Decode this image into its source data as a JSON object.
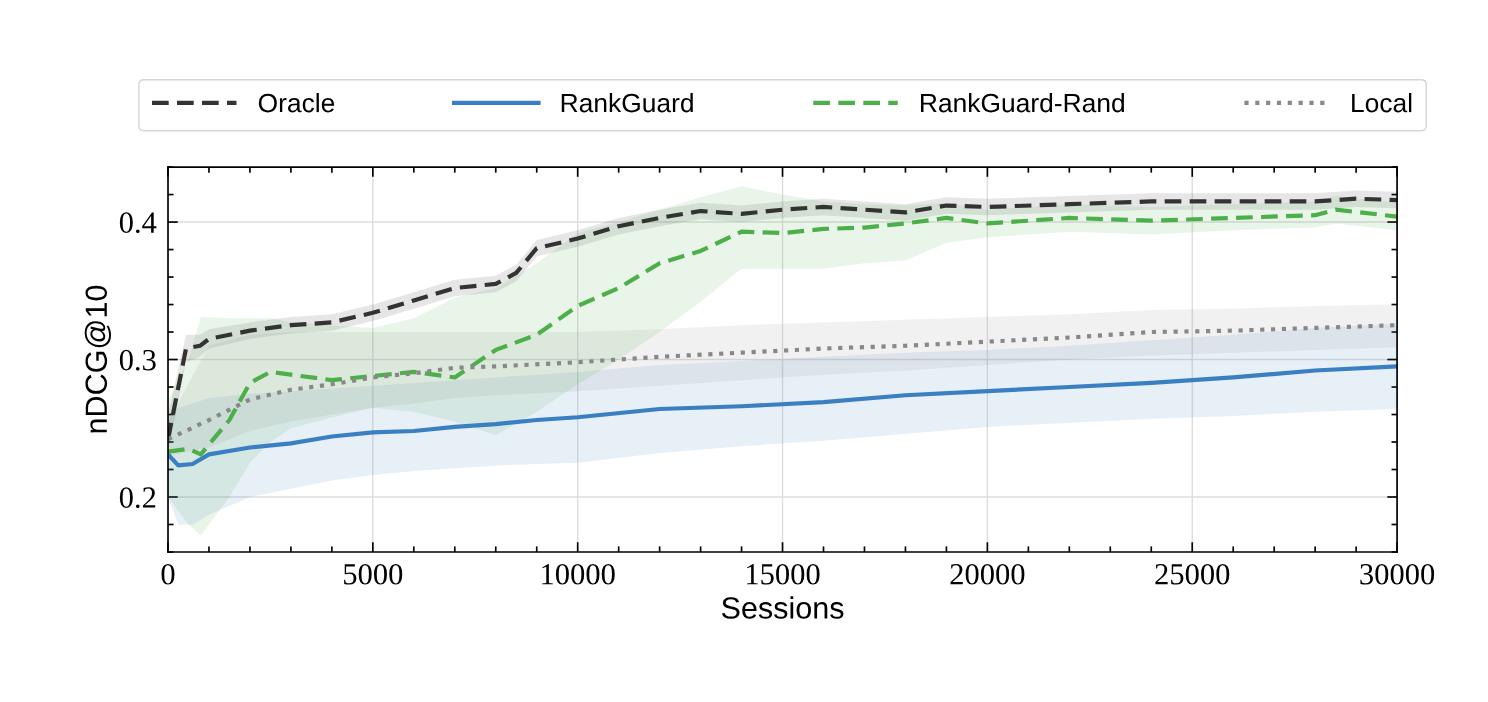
{
  "chart_data": {
    "type": "line",
    "xlabel": "Sessions",
    "ylabel": "nDCG@10",
    "xlim": [
      0,
      30000
    ],
    "ylim": [
      0.16,
      0.44
    ],
    "xticks": [
      0,
      {
        "value": 1000,
        "label": null
      },
      {
        "value": 2000,
        "label": null
      },
      {
        "value": 3000,
        "label": null
      },
      {
        "value": 4000,
        "label": null
      },
      5000,
      {
        "value": 6000,
        "label": null
      },
      {
        "value": 7000,
        "label": null
      },
      {
        "value": 8000,
        "label": null
      },
      {
        "value": 9000,
        "label": null
      },
      10000,
      {
        "value": 11000,
        "label": null
      },
      {
        "value": 12000,
        "label": null
      },
      {
        "value": 13000,
        "label": null
      },
      {
        "value": 14000,
        "label": null
      },
      15000,
      {
        "value": 16000,
        "label": null
      },
      {
        "value": 17000,
        "label": null
      },
      {
        "value": 18000,
        "label": null
      },
      {
        "value": 19000,
        "label": null
      },
      20000,
      {
        "value": 21000,
        "label": null
      },
      {
        "value": 22000,
        "label": null
      },
      {
        "value": 23000,
        "label": null
      },
      {
        "value": 24000,
        "label": null
      },
      25000,
      {
        "value": 26000,
        "label": null
      },
      {
        "value": 27000,
        "label": null
      },
      {
        "value": 28000,
        "label": null
      },
      {
        "value": 29000,
        "label": null
      },
      30000
    ],
    "yticks": [
      {
        "value": 0.16,
        "label": null
      },
      {
        "value": 0.18,
        "label": null
      },
      0.2,
      {
        "value": 0.22,
        "label": null
      },
      {
        "value": 0.24,
        "label": null
      },
      {
        "value": 0.26,
        "label": null
      },
      {
        "value": 0.28,
        "label": null
      },
      0.3,
      {
        "value": 0.32,
        "label": null
      },
      {
        "value": 0.34,
        "label": null
      },
      {
        "value": 0.36,
        "label": null
      },
      {
        "value": 0.38,
        "label": null
      },
      0.4,
      {
        "value": 0.42,
        "label": null
      },
      {
        "value": 0.44,
        "label": null
      }
    ],
    "grid": true,
    "legend": "top",
    "marker": "none",
    "series": [
      {
        "name": "Oracle",
        "color": "#333333",
        "line_style": "dashed",
        "x": [
          0,
          440,
          780,
          1000,
          2000,
          3000,
          4000,
          5000,
          6000,
          7000,
          8000,
          8500,
          9000,
          10000,
          11000,
          12000,
          13000,
          14000,
          15000,
          16000,
          17000,
          18000,
          19000,
          20000,
          22000,
          24000,
          26000,
          28000,
          29000,
          30000
        ],
        "values": [
          0.242,
          0.308,
          0.31,
          0.315,
          0.321,
          0.325,
          0.327,
          0.334,
          0.343,
          0.352,
          0.355,
          0.363,
          0.381,
          0.388,
          0.397,
          0.403,
          0.408,
          0.406,
          0.409,
          0.411,
          0.409,
          0.407,
          0.412,
          0.411,
          0.413,
          0.415,
          0.415,
          0.415,
          0.417,
          0.416
        ],
        "lower": [
          0.232,
          0.298,
          0.302,
          0.308,
          0.315,
          0.319,
          0.321,
          0.328,
          0.337,
          0.346,
          0.349,
          0.357,
          0.375,
          0.382,
          0.391,
          0.397,
          0.402,
          0.4,
          0.403,
          0.405,
          0.403,
          0.401,
          0.406,
          0.405,
          0.407,
          0.409,
          0.409,
          0.409,
          0.411,
          0.41
        ],
        "upper": [
          0.26,
          0.318,
          0.318,
          0.322,
          0.327,
          0.331,
          0.333,
          0.34,
          0.349,
          0.358,
          0.361,
          0.369,
          0.387,
          0.394,
          0.403,
          0.409,
          0.414,
          0.412,
          0.415,
          0.417,
          0.415,
          0.413,
          0.418,
          0.417,
          0.419,
          0.421,
          0.421,
          0.421,
          0.423,
          0.422
        ]
      },
      {
        "name": "RankGuard",
        "color": "#3a7fc1",
        "line_style": "solid",
        "x": [
          0,
          250,
          600,
          1000,
          2000,
          3000,
          4000,
          5000,
          6000,
          7000,
          8000,
          9000,
          10000,
          12000,
          14000,
          16000,
          18000,
          20000,
          22000,
          24000,
          26000,
          28000,
          30000
        ],
        "values": [
          0.231,
          0.223,
          0.224,
          0.231,
          0.236,
          0.239,
          0.244,
          0.247,
          0.248,
          0.251,
          0.253,
          0.256,
          0.258,
          0.264,
          0.266,
          0.269,
          0.274,
          0.277,
          0.28,
          0.283,
          0.287,
          0.292,
          0.295
        ],
        "lower": [
          0.2,
          0.18,
          0.18,
          0.187,
          0.2,
          0.206,
          0.212,
          0.216,
          0.219,
          0.221,
          0.223,
          0.224,
          0.225,
          0.232,
          0.237,
          0.241,
          0.246,
          0.251,
          0.254,
          0.257,
          0.259,
          0.262,
          0.264
        ],
        "upper": [
          0.26,
          0.265,
          0.268,
          0.272,
          0.275,
          0.277,
          0.279,
          0.281,
          0.283,
          0.285,
          0.287,
          0.289,
          0.291,
          0.296,
          0.299,
          0.302,
          0.305,
          0.307,
          0.31,
          0.314,
          0.318,
          0.323,
          0.326
        ]
      },
      {
        "name": "RankGuard-Rand",
        "color": "#4daf4a",
        "line_style": "dashed",
        "x": [
          0,
          500,
          800,
          1500,
          2000,
          2500,
          3000,
          4000,
          5000,
          6000,
          7000,
          8000,
          9000,
          10000,
          11000,
          12000,
          13000,
          14000,
          15000,
          16000,
          17000,
          18000,
          19000,
          20000,
          22000,
          24000,
          26000,
          28000,
          28500,
          30000
        ],
        "values": [
          0.233,
          0.235,
          0.231,
          0.256,
          0.283,
          0.291,
          0.289,
          0.285,
          0.288,
          0.291,
          0.287,
          0.307,
          0.318,
          0.339,
          0.352,
          0.37,
          0.379,
          0.393,
          0.392,
          0.395,
          0.396,
          0.399,
          0.403,
          0.399,
          0.403,
          0.401,
          0.403,
          0.405,
          0.409,
          0.404
        ],
        "lower": [
          0.2,
          0.18,
          0.172,
          0.2,
          0.225,
          0.24,
          0.25,
          0.258,
          0.265,
          0.262,
          0.255,
          0.245,
          0.262,
          0.282,
          0.3,
          0.32,
          0.342,
          0.366,
          0.366,
          0.366,
          0.37,
          0.372,
          0.385,
          0.389,
          0.393,
          0.391,
          0.394,
          0.396,
          0.399,
          0.394
        ],
        "upper": [
          0.27,
          0.3,
          0.331,
          0.33,
          0.33,
          0.33,
          0.327,
          0.325,
          0.323,
          0.33,
          0.345,
          0.352,
          0.37,
          0.392,
          0.4,
          0.409,
          0.418,
          0.426,
          0.42,
          0.415,
          0.413,
          0.412,
          0.414,
          0.409,
          0.413,
          0.411,
          0.413,
          0.415,
          0.419,
          0.414
        ]
      },
      {
        "name": "Local",
        "color": "#888888",
        "line_style": "dotted",
        "x": [
          0,
          1000,
          2000,
          3000,
          4000,
          5000,
          6000,
          7000,
          8000,
          10000,
          12000,
          14000,
          16000,
          18000,
          20000,
          22000,
          24000,
          26000,
          28000,
          30000
        ],
        "values": [
          0.242,
          0.256,
          0.271,
          0.278,
          0.282,
          0.287,
          0.29,
          0.294,
          0.295,
          0.298,
          0.302,
          0.305,
          0.308,
          0.31,
          0.313,
          0.316,
          0.32,
          0.321,
          0.323,
          0.325
        ],
        "lower": [
          0.23,
          0.236,
          0.248,
          0.255,
          0.26,
          0.265,
          0.268,
          0.272,
          0.274,
          0.277,
          0.281,
          0.285,
          0.289,
          0.292,
          0.296,
          0.3,
          0.303,
          0.305,
          0.307,
          0.309
        ],
        "upper": [
          0.255,
          0.31,
          0.318,
          0.32,
          0.32,
          0.32,
          0.32,
          0.32,
          0.32,
          0.32,
          0.322,
          0.325,
          0.327,
          0.329,
          0.331,
          0.333,
          0.336,
          0.337,
          0.339,
          0.34
        ]
      }
    ]
  }
}
